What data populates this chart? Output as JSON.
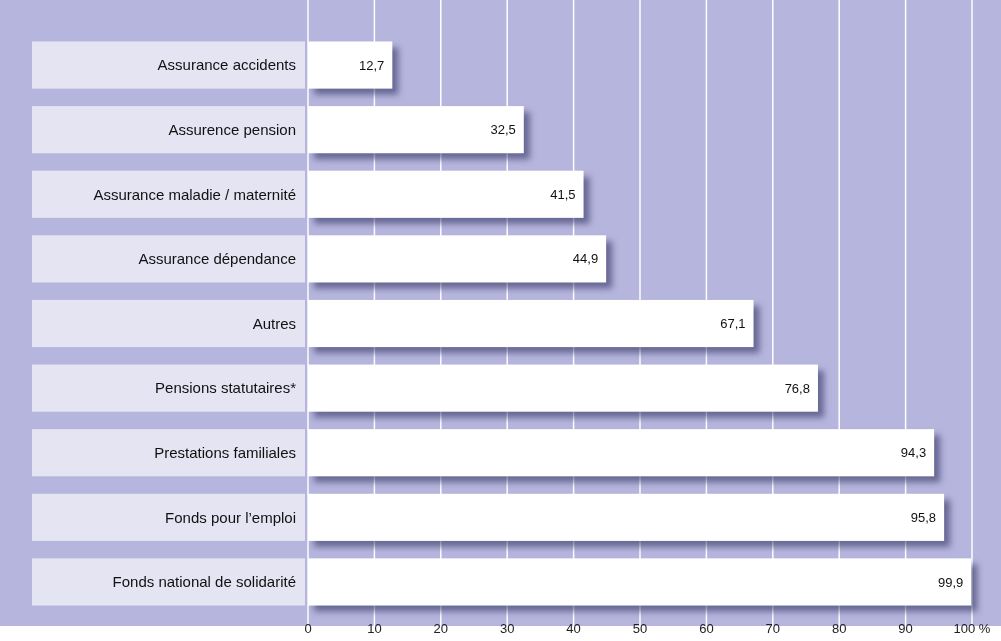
{
  "chart_data": {
    "type": "bar",
    "orientation": "horizontal",
    "categories": [
      "Assurance accidents",
      "Assurence pension",
      "Assurance maladie / maternité",
      "Assurance dépendance",
      "Autres",
      "Pensions statutaires*",
      "Prestations familiales",
      "Fonds pour l’emploi",
      "Fonds national de solidarité"
    ],
    "values": [
      12.7,
      32.5,
      41.5,
      44.9,
      67.1,
      76.8,
      94.3,
      95.8,
      99.9
    ],
    "value_labels": [
      "12,7",
      "32,5",
      "41,5",
      "44,9",
      "67,1",
      "76,8",
      "94,3",
      "95,8",
      "99,9"
    ],
    "color": "#ffffff",
    "xlim": [
      0,
      100
    ],
    "xticks": [
      0,
      10,
      20,
      30,
      40,
      50,
      60,
      70,
      80,
      90,
      {
        "value": 100,
        "label": "100 %"
      }
    ],
    "grid": "x"
  }
}
